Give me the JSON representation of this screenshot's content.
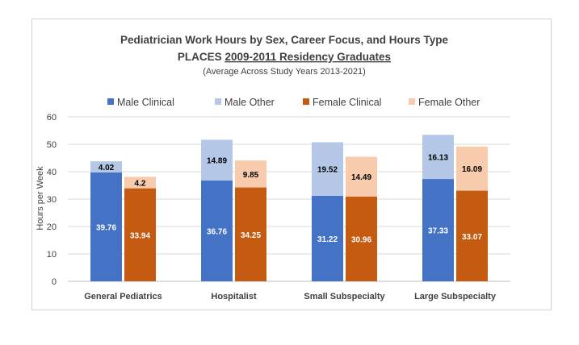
{
  "chart_data": {
    "type": "bar",
    "stacked": true,
    "title": "Pediatrician Work Hours by Sex, Career Focus, and Hours Type",
    "subtitle_prefix": "PLACES ",
    "subtitle_underlined": "2009-2011 Residency Graduates",
    "subtitle2": "(Average Across Study Years 2013-2021)",
    "ylabel": "Hours per Week",
    "ylim": [
      0,
      60
    ],
    "yticks": [
      0,
      10,
      20,
      30,
      40,
      50,
      60
    ],
    "ytick_labels": [
      "0",
      "10",
      "20",
      "30",
      "40",
      "50",
      "60"
    ],
    "grid": true,
    "legend_position": "top",
    "categories": [
      "General Pediatrics",
      "Hospitalist",
      "Small Subspecialty",
      "Large Subspecialty"
    ],
    "legend": [
      {
        "name": "Male Clinical",
        "color": "#4472C4"
      },
      {
        "name": "Male Other",
        "color": "#B4C7E7"
      },
      {
        "name": "Female Clinical",
        "color": "#C55A11"
      },
      {
        "name": "Female Other",
        "color": "#F8CBAD"
      }
    ],
    "stacks": [
      {
        "sex": "Male",
        "clinical": {
          "values": [
            39.76,
            36.76,
            31.22,
            37.33
          ],
          "labels": [
            "39.76",
            "36.76",
            "31.22",
            "37.33"
          ],
          "color": "#4472C4"
        },
        "other": {
          "values": [
            4.02,
            14.89,
            19.52,
            16.13
          ],
          "labels": [
            "4.02",
            "14.89",
            "19.52",
            "16.13"
          ],
          "color": "#B4C7E7"
        }
      },
      {
        "sex": "Female",
        "clinical": {
          "values": [
            33.94,
            34.25,
            30.96,
            33.07
          ],
          "labels": [
            "33.94",
            "34.25",
            "30.96",
            "33.07"
          ],
          "color": "#C55A11"
        },
        "other": {
          "values": [
            4.2,
            9.85,
            14.49,
            16.09
          ],
          "labels": [
            "4.2",
            "9.85",
            "14.49",
            "16.09"
          ],
          "color": "#F8CBAD"
        }
      }
    ],
    "gridline_color": "#d9d9d9"
  }
}
